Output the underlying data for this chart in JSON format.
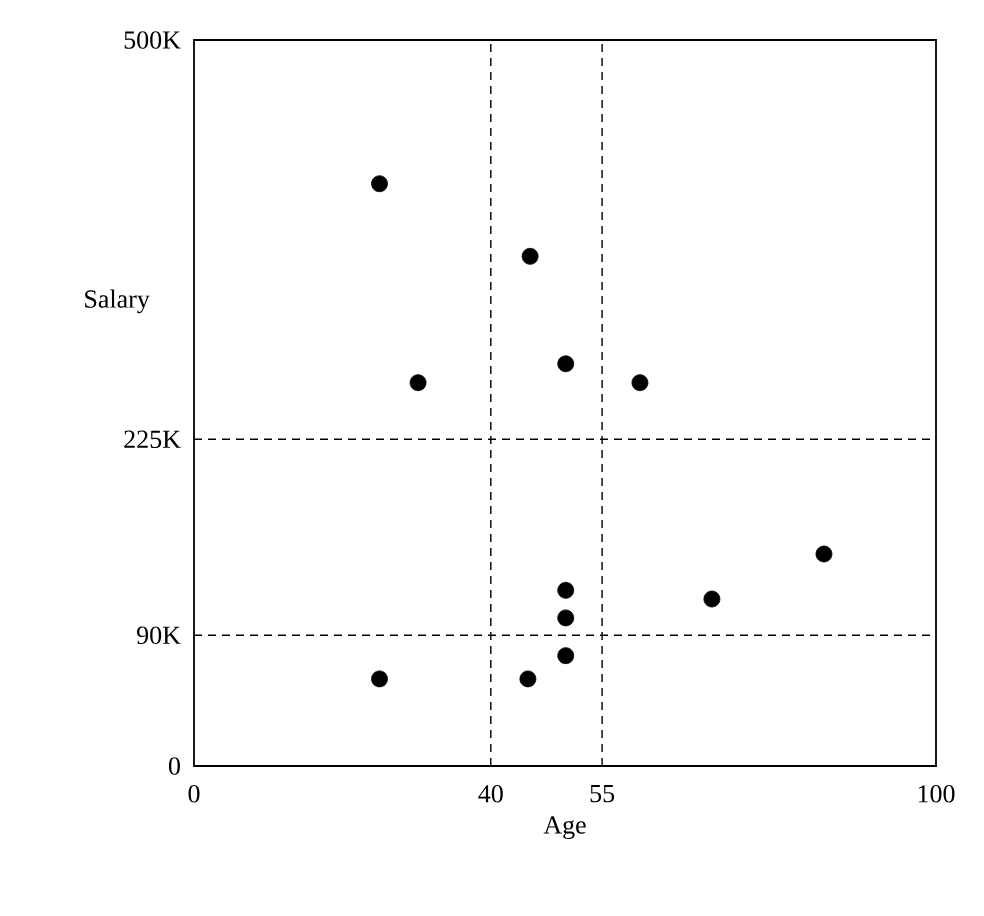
{
  "chart_data": {
    "type": "scatter",
    "xlabel": "Age",
    "ylabel": "Salary",
    "x": [
      25,
      45.3,
      30.2,
      50.1,
      60.1,
      84.9,
      69.8,
      50.1,
      50.1,
      50.1,
      25,
      45
    ],
    "values": [
      401000,
      351000,
      264000,
      277000,
      264000,
      146000,
      115000,
      121000,
      102000,
      76000,
      60000,
      60000
    ],
    "color": "#000000",
    "marker": "circle",
    "xlim": [
      0,
      100
    ],
    "xticks": [
      0,
      40,
      55,
      100
    ],
    "ylim": [
      0,
      500000
    ],
    "yticks": [
      {
        "value": 0,
        "label": "0"
      },
      {
        "value": 90000,
        "label": "90K"
      },
      {
        "value": 225000,
        "label": "225K"
      },
      {
        "value": 500000,
        "label": "500K"
      }
    ],
    "ref_lines": [
      {
        "axis": "x",
        "value": 40,
        "line_style": "dashed"
      },
      {
        "axis": "x",
        "value": 55,
        "line_style": "dashed"
      },
      {
        "axis": "y",
        "value": 90000,
        "line_style": "dashed"
      },
      {
        "axis": "y",
        "value": 225000,
        "line_style": "dashed"
      }
    ],
    "grid": false
  }
}
